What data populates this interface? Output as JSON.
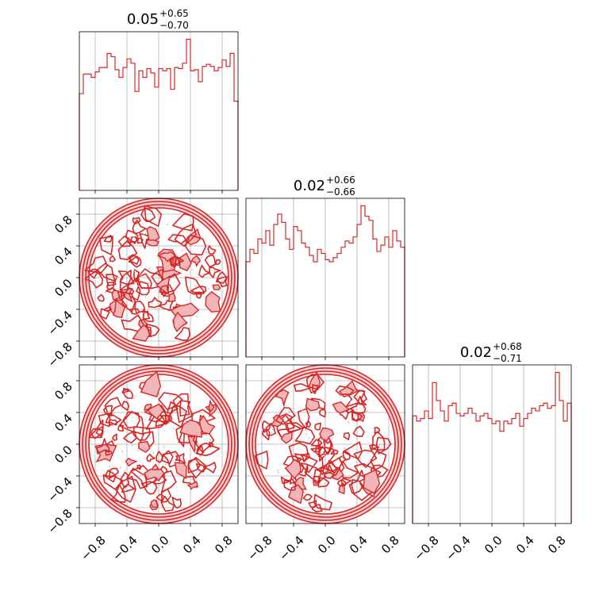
{
  "chart_data": [
    {
      "type": "histogram",
      "panel": "diag-0",
      "title": "0.05",
      "title_sup": "+0.65",
      "title_sub": "−0.70",
      "xlim": [
        -1,
        1
      ],
      "bin_edges_range": [
        -1,
        1
      ],
      "bins": 40,
      "values": [
        8.9,
        10.7,
        10.7,
        10.4,
        10.9,
        11.3,
        11.3,
        12.6,
        12.3,
        11.1,
        10.4,
        11.3,
        12.1,
        11.7,
        9.1,
        11.0,
        10.4,
        11.2,
        10.8,
        9.5,
        11.2,
        11.0,
        11.2,
        9.3,
        11.3,
        11.2,
        11.7,
        13.9,
        11.0,
        11.1,
        10.0,
        11.4,
        11.6,
        11.4,
        11.0,
        11.3,
        12.0,
        11.4,
        12.6,
        8.2
      ],
      "color": "#d62728",
      "xticks": [
        -0.8,
        -0.4,
        0.0,
        0.4,
        0.8
      ]
    },
    {
      "type": "histogram",
      "panel": "diag-1",
      "title": "0.02",
      "title_sup": "+0.66",
      "title_sub": "−0.66",
      "xlim": [
        -1,
        1
      ],
      "bins": 40,
      "values": [
        4.6,
        5.2,
        5.0,
        5.7,
        5.5,
        6.1,
        5.4,
        6.4,
        6.9,
        6.5,
        5.7,
        5.2,
        6.3,
        6.1,
        5.5,
        5.3,
        4.9,
        4.6,
        5.2,
        5.0,
        4.7,
        4.6,
        4.8,
        5.0,
        5.3,
        5.6,
        5.5,
        5.8,
        6.4,
        7.3,
        6.8,
        6.6,
        5.7,
        5.1,
        5.4,
        5.8,
        5.3,
        6.1,
        5.6,
        5.3
      ],
      "color": "#d62728",
      "xticks": [
        -0.8,
        -0.4,
        0.0,
        0.4,
        0.8
      ]
    },
    {
      "type": "histogram",
      "panel": "diag-2",
      "title": "0.02",
      "title_sup": "+0.68",
      "title_sub": "−0.71",
      "xlim": [
        -1,
        1
      ],
      "bins": 40,
      "values": [
        4.2,
        4.0,
        4.1,
        4.4,
        4.1,
        5.5,
        4.8,
        4.4,
        4.0,
        4.6,
        4.7,
        4.3,
        4.2,
        4.3,
        4.5,
        4.3,
        4.0,
        4.2,
        4.3,
        4.1,
        3.9,
        4.0,
        3.6,
        4.0,
        3.9,
        4.1,
        4.3,
        3.8,
        4.1,
        4.3,
        4.5,
        4.4,
        4.6,
        4.7,
        4.5,
        4.6,
        5.9,
        4.8,
        4.0,
        4.7
      ],
      "color": "#d62728",
      "xticks": [
        -0.8,
        -0.4,
        0.0,
        0.4,
        0.8
      ]
    },
    {
      "type": "contour",
      "panel": "2d-1-0",
      "xlim": [
        -1,
        1
      ],
      "ylim": [
        -1,
        1
      ],
      "support": "unit disk",
      "color": "#d62728",
      "yticks": [
        -0.8,
        -0.4,
        0.0,
        0.4,
        0.8
      ]
    },
    {
      "type": "contour",
      "panel": "2d-2-0",
      "xlim": [
        -1,
        1
      ],
      "ylim": [
        -1,
        1
      ],
      "support": "unit disk",
      "color": "#d62728",
      "xticks": [
        -0.8,
        -0.4,
        0.0,
        0.4,
        0.8
      ],
      "yticks": [
        -0.8,
        -0.4,
        0.0,
        0.4,
        0.8
      ]
    },
    {
      "type": "contour",
      "panel": "2d-2-1",
      "xlim": [
        -1,
        1
      ],
      "ylim": [
        -1,
        1
      ],
      "support": "unit disk",
      "color": "#d62728",
      "xticks": [
        -0.8,
        -0.4,
        0.0,
        0.4,
        0.8
      ]
    }
  ],
  "tick_labels": [
    "−0.8",
    "−0.4",
    "0.0",
    "0.4",
    "0.8"
  ]
}
